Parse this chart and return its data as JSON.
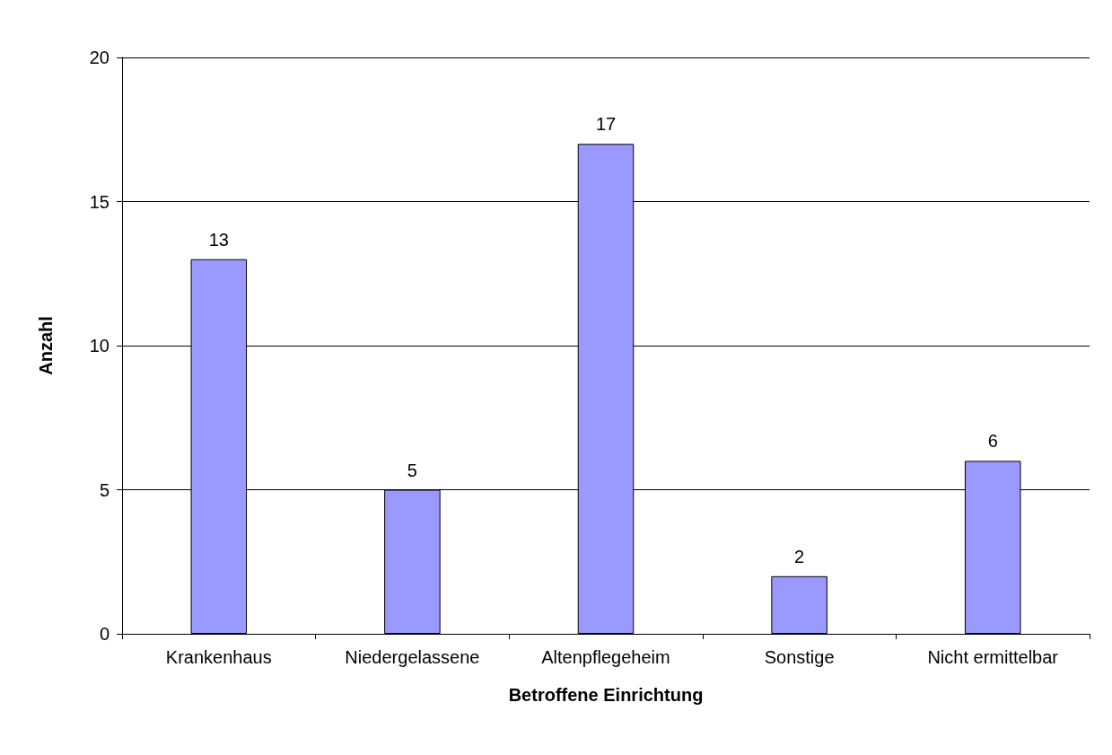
{
  "chart_data": {
    "type": "bar",
    "xlabel": "Betroffene Einrichtung",
    "ylabel": "Anzahl",
    "categories": [
      "Krankenhaus",
      "Niedergelassene",
      "Altenpflegeheim",
      "Sonstige",
      "Nicht ermittelbar"
    ],
    "values": [
      13,
      5,
      17,
      2,
      6
    ],
    "color": "#9999ff",
    "ylim": [
      0,
      20
    ],
    "yticks": [
      0,
      5,
      10,
      15,
      20
    ],
    "grid": "y",
    "data_labels": true
  }
}
